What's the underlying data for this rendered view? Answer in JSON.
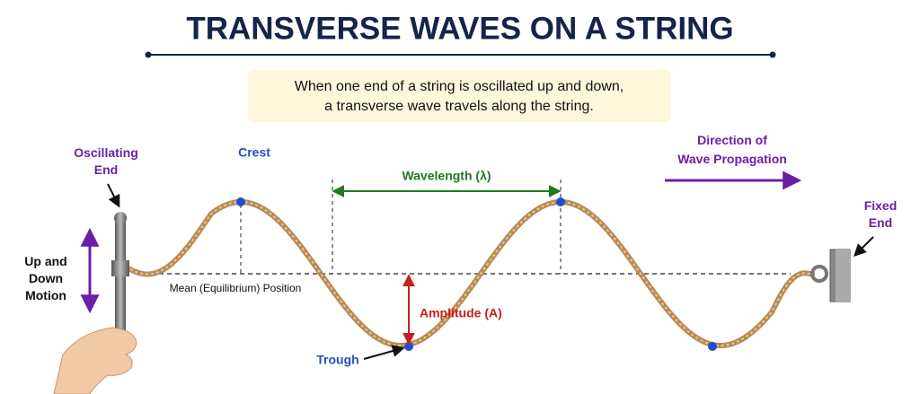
{
  "header": {
    "title": "TRANSVERSE WAVES ON A STRING",
    "description": [
      "When one end of a string is oscillated up and down,",
      "a transverse wave travels along the string."
    ]
  },
  "labels": {
    "oscillating_end": [
      "Oscillating",
      "End"
    ],
    "crest": "Crest",
    "wavelength": "Wavelength (λ)",
    "direction": [
      "Direction of",
      "Wave Propagation"
    ],
    "fixed_end": [
      "Fixed",
      "End"
    ],
    "motion": [
      "Up and",
      "Down",
      "Motion"
    ],
    "mean_position": "Mean (Equilibrium) Position",
    "amplitude": "Amplitude (A)",
    "trough": "Trough"
  }
}
